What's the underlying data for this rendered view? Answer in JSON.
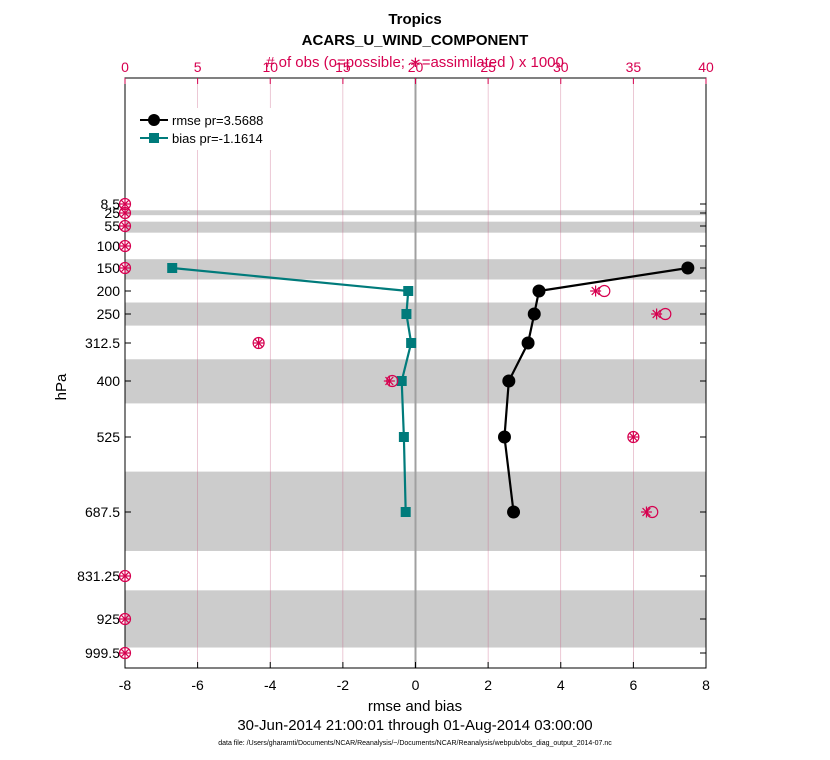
{
  "chart_data": {
    "type": "line",
    "title": "Tropics",
    "subtitle": "ACARS_U_WIND_COMPONENT",
    "top_axis_label": "# of obs (o=possible; ∗=assimilated ) x 1000",
    "xlabel": "rmse and bias",
    "ylabel": "hPa",
    "date_range": "30-Jun-2014 21:00:01 through 01-Aug-2014 03:00:00",
    "data_file": "data file: /Users/gharamti/Documents/NCAR/Reanalysis/~/Documents/NCAR/Reanalysis/webpub/obs_diag_output_2014-07.nc",
    "xlim": [
      -8,
      8
    ],
    "x_ticks": [
      "-8",
      "-6",
      "-4",
      "-2",
      "0",
      "2",
      "4",
      "6",
      "8"
    ],
    "top_xlim": [
      0,
      40
    ],
    "top_ticks": [
      "0",
      "5",
      "10",
      "15",
      "20",
      "25",
      "30",
      "35",
      "40"
    ],
    "y_levels": [
      8.5,
      25,
      55,
      100,
      150,
      200,
      250,
      312.5,
      400,
      525,
      687.5,
      831.25,
      925,
      999.5
    ],
    "y_tick_labels": [
      "8.5",
      "25",
      "55",
      "100",
      "150",
      "200",
      "250",
      "312.5",
      "400",
      "525",
      "687.5",
      "831.25",
      "925",
      "999.5"
    ],
    "series": [
      {
        "name": "rmse pr=3.5688",
        "levels": [
          150,
          200,
          250,
          312.5,
          400,
          525,
          687.5
        ],
        "values": [
          7.5,
          3.4,
          3.27,
          3.1,
          2.57,
          2.45,
          2.7
        ]
      },
      {
        "name": "bias pr=-1.1614",
        "levels": [
          150,
          200,
          250,
          312.5,
          400,
          525,
          687.5
        ],
        "values": [
          -6.7,
          -0.2,
          -0.25,
          -0.12,
          -0.38,
          -0.32,
          -0.27
        ]
      }
    ],
    "obs_possible": {
      "levels": [
        8.5,
        25,
        55,
        100,
        150,
        200,
        250,
        312.5,
        400,
        525,
        687.5,
        831.25,
        925,
        999.5
      ],
      "values": [
        0.0,
        0.0,
        0.0,
        0.0,
        0.0,
        33.0,
        37.2,
        9.2,
        18.4,
        35.0,
        36.3,
        0.0,
        0.0,
        0.0
      ]
    },
    "obs_assimilated": {
      "levels": [
        8.5,
        25,
        55,
        100,
        150,
        200,
        250,
        312.5,
        400,
        525,
        687.5,
        831.25,
        925,
        999.5
      ],
      "values": [
        0.0,
        0.0,
        0.0,
        0.0,
        0.0,
        32.4,
        36.6,
        9.2,
        18.2,
        35.0,
        35.9,
        0.0,
        0.0,
        0.0
      ]
    },
    "shaded_bands": [
      [
        20,
        30
      ],
      [
        45,
        70
      ],
      [
        130,
        175
      ],
      [
        225,
        275
      ],
      [
        350,
        450
      ],
      [
        600,
        775
      ],
      [
        862.5,
        987.5
      ]
    ],
    "colors": {
      "rmse": "#000000",
      "bias": "#007b7b",
      "obs": "#d6004f",
      "grid_vertical": "#c55a80",
      "band": "#cccccc",
      "zero_line": "#a0a0a0"
    }
  }
}
